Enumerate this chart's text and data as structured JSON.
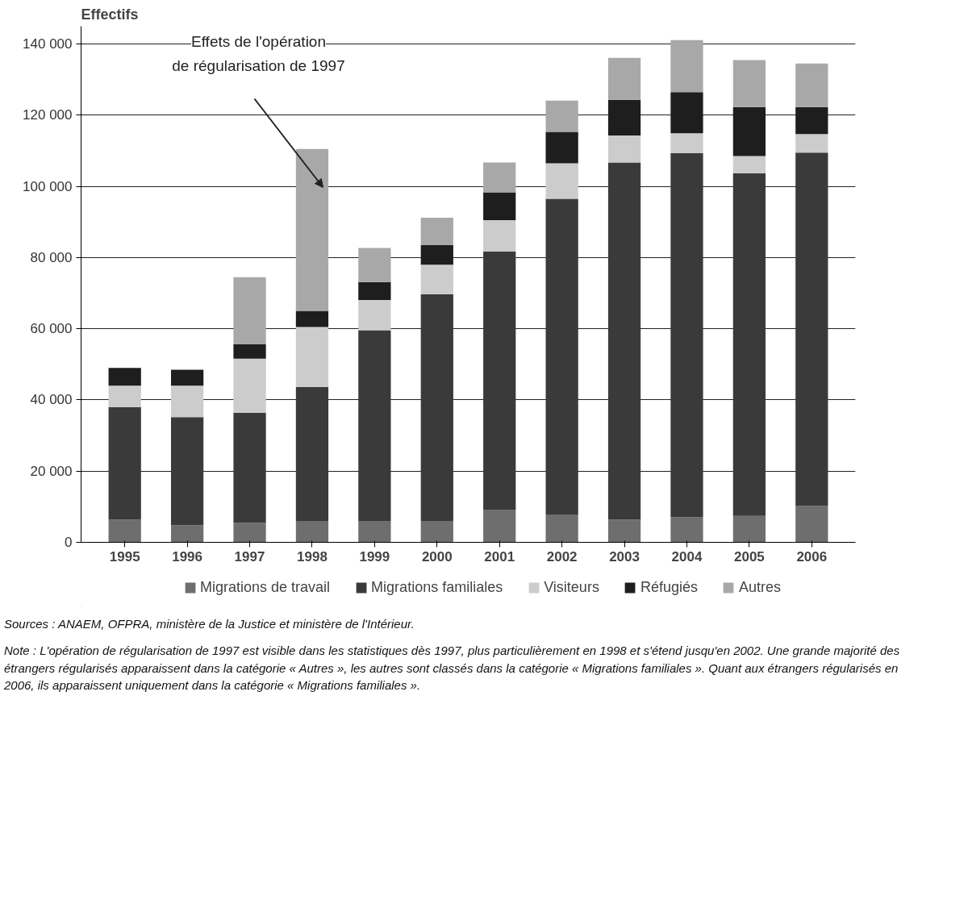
{
  "chart_data": {
    "type": "bar",
    "stacked": true,
    "ylabel": "Effectifs",
    "categories": [
      "1995",
      "1996",
      "1997",
      "1998",
      "1999",
      "2000",
      "2001",
      "2002",
      "2003",
      "2004",
      "2005",
      "2006"
    ],
    "series": [
      {
        "name": "Migrations de travail",
        "color": "#6e6e6e",
        "values": [
          6400,
          4800,
          5500,
          6000,
          6000,
          6000,
          9200,
          7800,
          6400,
          7000,
          7400,
          10200
        ]
      },
      {
        "name": "Migrations familiales",
        "color": "#3a3a3a",
        "values": [
          31600,
          30400,
          30900,
          37600,
          53600,
          63700,
          72500,
          88700,
          100300,
          102300,
          96300,
          99300
        ]
      },
      {
        "name": "Visiteurs",
        "color": "#cccccc",
        "values": [
          6000,
          8800,
          15200,
          16900,
          8500,
          8300,
          8800,
          10000,
          7600,
          5600,
          4800,
          5200
        ]
      },
      {
        "name": "Réfugiés",
        "color": "#1e1e1e",
        "values": [
          5000,
          4500,
          4000,
          4500,
          5000,
          5500,
          7800,
          8800,
          10000,
          11600,
          13800,
          7600
        ]
      },
      {
        "name": "Autres",
        "color": "#a8a8a8",
        "values": [
          0,
          0,
          18900,
          45500,
          9600,
          7700,
          8400,
          8800,
          11800,
          14600,
          13200,
          12200
        ]
      }
    ],
    "ylim": [
      0,
      145000
    ],
    "yticks": [
      {
        "value": 0,
        "label": "0"
      },
      {
        "value": 20000,
        "label": "20 000"
      },
      {
        "value": 40000,
        "label": "40 000"
      },
      {
        "value": 60000,
        "label": "60 000"
      },
      {
        "value": 80000,
        "label": "80 000"
      },
      {
        "value": 100000,
        "label": "100 000"
      },
      {
        "value": 120000,
        "label": "120 000"
      },
      {
        "value": 140000,
        "label": "140 000"
      }
    ],
    "grid": "y",
    "legend": "bottom",
    "annotations": [
      "Effets de l'opération\nde régularisation de 1997",
      "Sources : ANAEM, OFPRA, ministère de la Justice et ministère de l'Intérieur.",
      "Note : L'opération de régularisation de 1997 est visible dans les statistiques dès 1997, plus particulièrement en 1998 et s'étend jusqu'en 2002. Une grande majorité des étrangers régularisés apparaissent dans la catégorie « Autres », les autres sont classés dans la catégorie « Migrations familiales ». Quant aux étrangers régularisés en 2006, ils apparaissent uniquement dans la catégorie « Migrations familiales »."
    ]
  }
}
